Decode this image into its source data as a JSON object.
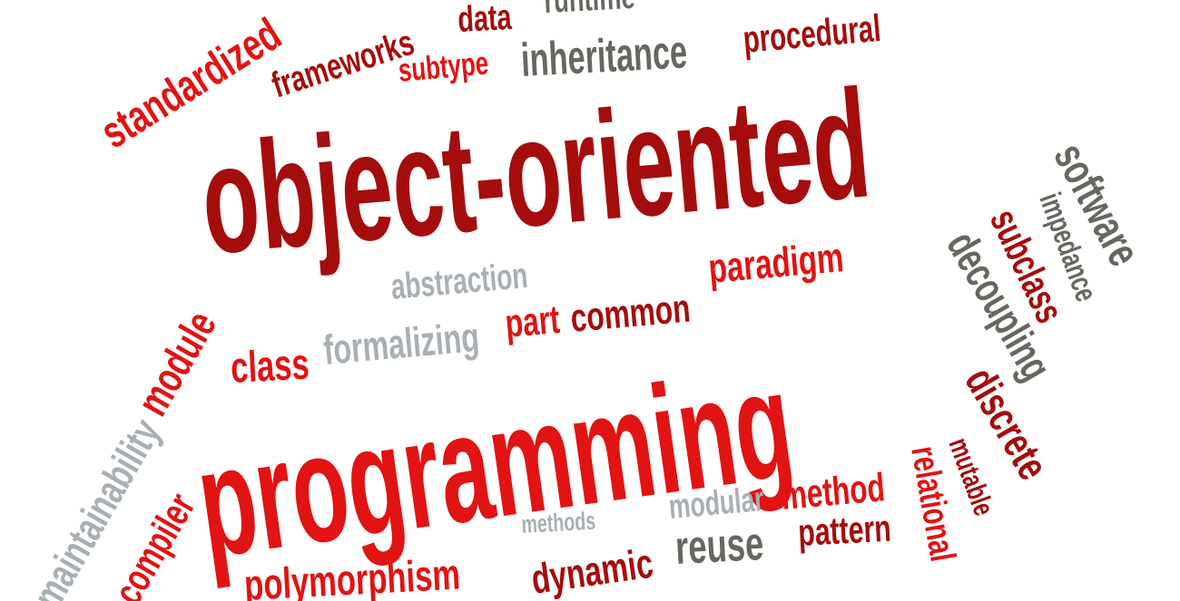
{
  "words": [
    {
      "text": "standardized"
    },
    {
      "text": "frameworks"
    },
    {
      "text": "data"
    },
    {
      "text": "runtime"
    },
    {
      "text": "subtype"
    },
    {
      "text": "inheritance"
    },
    {
      "text": "procedural"
    },
    {
      "text": "object-oriented"
    },
    {
      "text": "software"
    },
    {
      "text": "impedance"
    },
    {
      "text": "subclass"
    },
    {
      "text": "decoupling"
    },
    {
      "text": "abstraction"
    },
    {
      "text": "paradigm"
    },
    {
      "text": "part"
    },
    {
      "text": "common"
    },
    {
      "text": "formalizing"
    },
    {
      "text": "class"
    },
    {
      "text": "module"
    },
    {
      "text": "programming"
    },
    {
      "text": "discrete"
    },
    {
      "text": "relational"
    },
    {
      "text": "mutable"
    },
    {
      "text": "method"
    },
    {
      "text": "modular"
    },
    {
      "text": "methods"
    },
    {
      "text": "dynamic"
    },
    {
      "text": "reuse"
    },
    {
      "text": "pattern"
    },
    {
      "text": "polymorphism"
    },
    {
      "text": "compiler"
    },
    {
      "text": "maintainability"
    }
  ]
}
